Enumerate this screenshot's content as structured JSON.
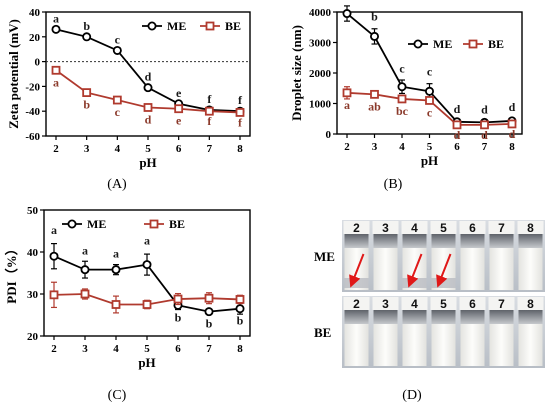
{
  "chart_data": [
    {
      "panel": "(A)",
      "type": "line",
      "ylabel": "Zeta potential (mV)",
      "xlabel": "pH",
      "x": [
        2,
        3,
        4,
        5,
        6,
        7,
        8
      ],
      "ylim": [
        -60,
        40
      ],
      "yticks": [
        40,
        20,
        0,
        -20,
        -40,
        -60
      ],
      "reference_line_y": 0,
      "legend_position": "top-right",
      "series": [
        {
          "name": "ME",
          "color": "#000000",
          "marker": "circle",
          "values": [
            26,
            20,
            9,
            -21,
            -34,
            -39,
            -40
          ],
          "letters": [
            "a",
            "b",
            "c",
            "d",
            "e",
            "f",
            "f"
          ]
        },
        {
          "name": "BE",
          "color": "#b03a2e",
          "marker": "square",
          "values": [
            -7,
            -25,
            -31,
            -37,
            -38,
            -40,
            -41
          ],
          "letters": [
            "a",
            "b",
            "c",
            "d",
            "e",
            "f",
            "f"
          ]
        }
      ]
    },
    {
      "panel": "(B)",
      "type": "line",
      "ylabel": "Droplet size (nm)",
      "xlabel": "pH",
      "x": [
        2,
        3,
        4,
        5,
        6,
        7,
        8
      ],
      "ylim": [
        0,
        4000
      ],
      "yticks": [
        0,
        1000,
        2000,
        3000,
        4000
      ],
      "legend_position": "top-right",
      "series": [
        {
          "name": "ME",
          "color": "#000000",
          "marker": "circle",
          "values": [
            3950,
            3200,
            1550,
            1400,
            400,
            380,
            430
          ],
          "errors": [
            250,
            250,
            220,
            250,
            80,
            80,
            80
          ],
          "letters": [
            "a",
            "b",
            "c",
            "c",
            "d",
            "d",
            "d"
          ]
        },
        {
          "name": "BE",
          "color": "#b03a2e",
          "marker": "square",
          "values": [
            1350,
            1300,
            1150,
            1100,
            300,
            300,
            330
          ],
          "errors": [
            200,
            80,
            100,
            80,
            60,
            60,
            60
          ],
          "letters": [
            "a",
            "ab",
            "bc",
            "c",
            "d",
            "d",
            "d"
          ]
        }
      ]
    },
    {
      "panel": "(C)",
      "type": "line",
      "ylabel": "PDI（%）",
      "xlabel": "pH",
      "x": [
        2,
        3,
        4,
        5,
        6,
        7,
        8
      ],
      "ylim": [
        20,
        50
      ],
      "yticks": [
        20,
        30,
        40,
        50
      ],
      "legend_position": "top",
      "series": [
        {
          "name": "ME",
          "color": "#000000",
          "marker": "circle",
          "values": [
            39,
            35.8,
            35.8,
            37,
            27.3,
            25.8,
            26.5
          ],
          "errors": [
            3,
            2,
            1.2,
            2.5,
            1,
            0.6,
            1.3
          ],
          "letters": [
            "a",
            "a",
            "a",
            "a",
            "b",
            "b",
            "b"
          ]
        },
        {
          "name": "BE",
          "color": "#b03a2e",
          "marker": "square",
          "values": [
            29.8,
            30,
            27.5,
            27.5,
            28.8,
            29,
            28.7
          ],
          "errors": [
            3,
            1.2,
            2,
            1,
            1.3,
            1.3,
            1
          ]
        }
      ]
    }
  ],
  "photo": {
    "panel": "(D)",
    "rows": [
      {
        "label": "ME",
        "vials": [
          "2",
          "3",
          "4",
          "5",
          "6",
          "7",
          "8"
        ],
        "arrows_on": [
          0,
          2,
          3
        ]
      },
      {
        "label": "BE",
        "vials": [
          "2",
          "3",
          "4",
          "5",
          "6",
          "7",
          "8"
        ]
      }
    ]
  }
}
